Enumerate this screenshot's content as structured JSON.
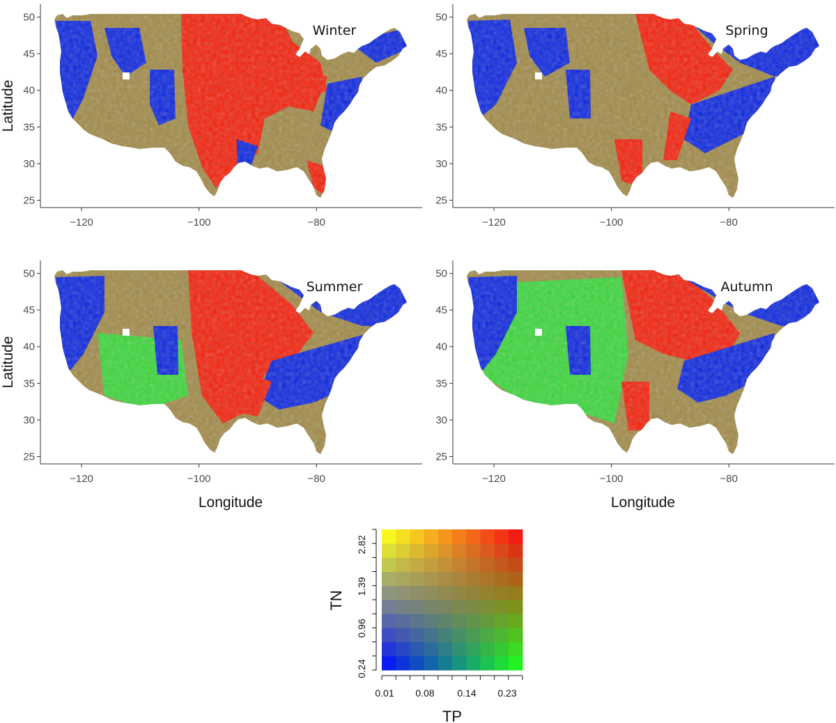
{
  "panels": [
    {
      "season": "Winter",
      "ylabel": "Latitude",
      "xlabel": "",
      "pattern": "winter"
    },
    {
      "season": "Spring",
      "ylabel": "",
      "xlabel": "",
      "pattern": "spring"
    },
    {
      "season": "Summer",
      "ylabel": "Latitude",
      "xlabel": "Longitude",
      "pattern": "summer"
    },
    {
      "season": "Autumn",
      "ylabel": "",
      "xlabel": "Longitude",
      "pattern": "autumn"
    }
  ],
  "axes": {
    "x_ticks": [
      "−120",
      "−100",
      "−80"
    ],
    "x_tick_values": [
      -120,
      -100,
      -80
    ],
    "y_ticks": [
      "25",
      "30",
      "35",
      "40",
      "45",
      "50"
    ],
    "y_tick_values": [
      25,
      30,
      35,
      40,
      45,
      50
    ],
    "xlim": [
      -127,
      -62
    ],
    "ylim": [
      24,
      51
    ]
  },
  "legend": {
    "x_title": "TP",
    "y_title": "TN",
    "x_ticks": [
      "0.01",
      "0.08",
      "0.14",
      "0.23"
    ],
    "y_ticks": [
      "0.24",
      "0.96",
      "1.39",
      "2.82"
    ],
    "grid_size": 10,
    "corner_colors": {
      "low_tp_low_tn": "#0a1df0",
      "high_tp_low_tn": "#22f222",
      "low_tp_high_tn": "#f7f722",
      "high_tp_high_tn": "#f21d14"
    }
  },
  "map_colors": {
    "red": "#f5200a",
    "blue": "#0c26e0",
    "olive": "#a18a47",
    "green": "#3ad83a"
  }
}
